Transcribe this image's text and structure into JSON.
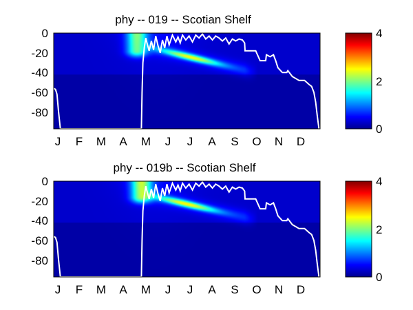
{
  "chart_data": [
    {
      "type": "heatmap",
      "title": "phy -- 019 -- Scotian Shelf",
      "xlabel": "",
      "ylabel": "",
      "xlim": [
        0,
        12
      ],
      "ylim": [
        -97,
        0
      ],
      "x_tick_labels": [
        "J",
        "F",
        "M",
        "A",
        "M",
        "J",
        "J",
        "A",
        "S",
        "O",
        "N",
        "D"
      ],
      "y_ticks": [
        0,
        -20,
        -40,
        -60,
        -80
      ],
      "y_tick_labels": [
        "0",
        "-20",
        "-40",
        "-60",
        "-80"
      ],
      "colorbar": {
        "min": 0,
        "max": 4,
        "ticks": [
          0,
          2,
          4
        ],
        "tick_labels": [
          "0",
          "2",
          "4"
        ],
        "colormap": "jet"
      },
      "bloom": {
        "spring": {
          "month_center": 3.75,
          "month_width": 0.45,
          "depth_top": 0,
          "depth_bottom": 18,
          "peak": 1.55
        },
        "subsurface": {
          "month_start": 4.2,
          "month_end": 8.9,
          "depth_start": 14,
          "depth_end": 39,
          "peak_month": 6.2,
          "peak": 1.8
        }
      },
      "background_levels": {
        "upper": 0.3,
        "lower": 0.15,
        "boundary_depth": 42
      },
      "line_color": "#ffffff",
      "mixed_layer_depth": {
        "month": [
          0,
          0.08,
          0.15,
          0.22,
          0.3,
          3.95,
          3.98,
          4.02,
          4.08,
          4.15,
          4.2,
          4.3,
          4.4,
          4.5,
          4.6,
          4.7,
          4.8,
          4.9,
          5.0,
          5.1,
          5.2,
          5.35,
          5.5,
          5.6,
          5.7,
          5.8,
          5.95,
          6.1,
          6.25,
          6.4,
          6.55,
          6.7,
          6.85,
          7.0,
          7.15,
          7.3,
          7.45,
          7.6,
          7.75,
          7.9,
          8.05,
          8.2,
          8.35,
          8.5,
          8.6,
          8.62,
          8.8,
          9.1,
          9.3,
          9.55,
          9.58,
          9.75,
          9.9,
          10.0,
          10.1,
          10.3,
          10.5,
          10.55,
          10.75,
          10.9,
          11.05,
          11.3,
          11.5,
          11.62,
          11.72,
          11.8,
          11.88,
          11.95
        ],
        "depth": [
          -56,
          -57,
          -62,
          -80,
          -97,
          -97,
          -60,
          -30,
          -15,
          -5,
          -10,
          -18,
          -8,
          -17,
          -3,
          -13,
          -20,
          -7,
          -15,
          -3,
          -12,
          -2,
          -9,
          -4,
          -10,
          -2,
          -7,
          -3,
          -9,
          -2,
          -5,
          -1,
          -6,
          -3,
          -7,
          -3,
          -5,
          -8,
          -5,
          -11,
          -6,
          -8,
          -6,
          -7,
          -10,
          -18,
          -18,
          -18,
          -28,
          -28,
          -22,
          -24,
          -22,
          -28,
          -35,
          -40,
          -40,
          -38,
          -44,
          -46,
          -48,
          -48,
          -52,
          -54,
          -60,
          -70,
          -85,
          -97
        ]
      }
    },
    {
      "type": "heatmap",
      "title": "phy -- 019b -- Scotian Shelf",
      "xlabel": "",
      "ylabel": "",
      "xlim": [
        0,
        12
      ],
      "ylim": [
        -97,
        0
      ],
      "x_tick_labels": [
        "J",
        "F",
        "M",
        "A",
        "M",
        "J",
        "J",
        "A",
        "S",
        "O",
        "N",
        "D"
      ],
      "y_ticks": [
        0,
        -20,
        -40,
        -60,
        -80
      ],
      "y_tick_labels": [
        "0",
        "-20",
        "-40",
        "-60",
        "-80"
      ],
      "colorbar": {
        "min": 0,
        "max": 4,
        "ticks": [
          0,
          2,
          4
        ],
        "tick_labels": [
          "0",
          "2",
          "4"
        ],
        "colormap": "jet"
      },
      "bloom": {
        "spring": {
          "month_center": 3.95,
          "month_width": 0.45,
          "depth_top": 0,
          "depth_bottom": 16,
          "peak": 1.8
        },
        "subsurface": {
          "month_start": 4.2,
          "month_end": 8.9,
          "depth_start": 14,
          "depth_end": 38,
          "peak_month": 6.0,
          "peak": 1.85
        }
      },
      "background_levels": {
        "upper": 0.3,
        "lower": 0.15,
        "boundary_depth": 42
      },
      "line_color": "#ffffff",
      "mixed_layer_depth": {
        "month": [
          0,
          0.08,
          0.15,
          0.22,
          0.3,
          3.95,
          3.98,
          4.02,
          4.08,
          4.15,
          4.2,
          4.3,
          4.4,
          4.5,
          4.6,
          4.7,
          4.8,
          4.9,
          5.0,
          5.1,
          5.2,
          5.35,
          5.5,
          5.6,
          5.7,
          5.8,
          5.95,
          6.1,
          6.25,
          6.4,
          6.55,
          6.7,
          6.85,
          7.0,
          7.15,
          7.3,
          7.45,
          7.6,
          7.75,
          7.9,
          8.05,
          8.2,
          8.35,
          8.5,
          8.6,
          8.62,
          8.8,
          9.1,
          9.3,
          9.55,
          9.58,
          9.75,
          9.9,
          10.0,
          10.1,
          10.3,
          10.5,
          10.55,
          10.75,
          10.9,
          11.05,
          11.3,
          11.5,
          11.62,
          11.72,
          11.8,
          11.88,
          11.95
        ],
        "depth": [
          -56,
          -57,
          -62,
          -80,
          -97,
          -97,
          -60,
          -30,
          -15,
          -5,
          -10,
          -18,
          -8,
          -17,
          -3,
          -13,
          -20,
          -7,
          -15,
          -3,
          -12,
          -2,
          -9,
          -4,
          -10,
          -2,
          -7,
          -3,
          -9,
          -2,
          -5,
          -1,
          -6,
          -3,
          -7,
          -3,
          -5,
          -8,
          -5,
          -11,
          -6,
          -8,
          -6,
          -7,
          -10,
          -18,
          -18,
          -18,
          -28,
          -28,
          -22,
          -24,
          -22,
          -28,
          -35,
          -40,
          -40,
          -38,
          -44,
          -46,
          -48,
          -48,
          -52,
          -54,
          -60,
          -70,
          -85,
          -97
        ]
      }
    }
  ]
}
